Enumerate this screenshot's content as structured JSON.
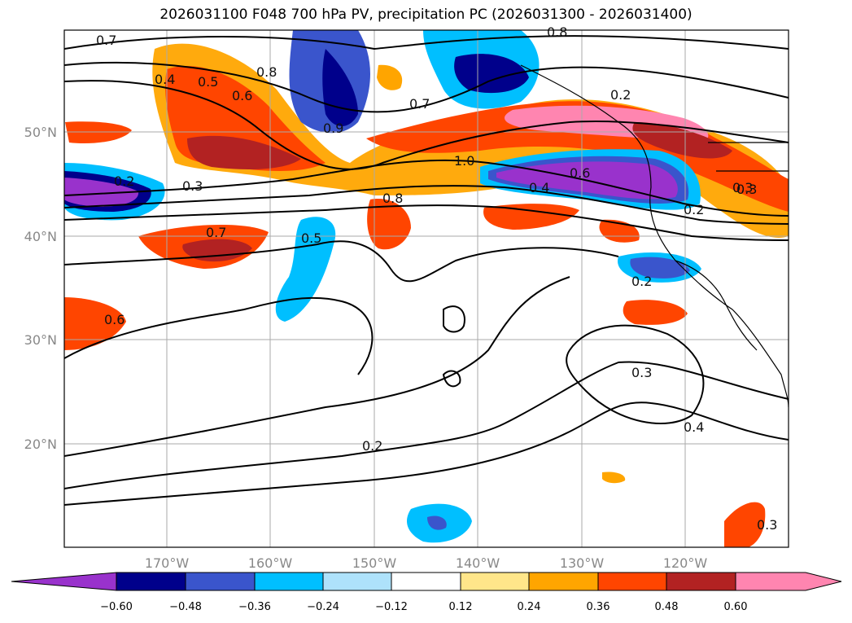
{
  "title": "2026031100 F048 700 hPa PV, precipitation PC (2026031300 - 2026031400)",
  "map": {
    "lon_range": [
      -180,
      -110
    ],
    "lat_range": [
      10,
      60
    ],
    "lat_ticks": [
      {
        "value": 50,
        "label": "50°N"
      },
      {
        "value": 40,
        "label": "40°N"
      },
      {
        "value": 30,
        "label": "30°N"
      },
      {
        "value": 20,
        "label": "20°N"
      }
    ],
    "lon_ticks": [
      {
        "value": -170,
        "label": "170°W"
      },
      {
        "value": -160,
        "label": "160°W"
      },
      {
        "value": -150,
        "label": "150°W"
      },
      {
        "value": -140,
        "label": "140°W"
      },
      {
        "value": -130,
        "label": "130°W"
      },
      {
        "value": -120,
        "label": "120°W"
      }
    ],
    "gridlines": true,
    "contour_labels": [
      "0.7",
      "0.4",
      "0.5",
      "0.6",
      "0.8",
      "0.2",
      "0.3",
      "0.9",
      "1.0",
      "0.6",
      "0.4",
      "0.8",
      "0.2",
      "0.7",
      "0.5",
      "0.6",
      "0.3",
      "0.2",
      "0.3",
      "0.4",
      "0.2",
      "0.7",
      "0.8",
      "0.3",
      "0.2",
      "0.3"
    ]
  },
  "colorbar": {
    "ticks": [
      "−0.60",
      "−0.48",
      "−0.36",
      "−0.24",
      "−0.12",
      "0.12",
      "0.24",
      "0.36",
      "0.48",
      "0.60"
    ],
    "colors": {
      "under": "#9932cc",
      "c1": "#00008b",
      "c2": "#3a55cc",
      "c3": "#00bfff",
      "c4": "#aee2fb",
      "c5": "#ffffff",
      "c6": "#ffe68a",
      "c7": "#ffa500",
      "c8": "#ff4500",
      "c9": "#b22222",
      "over": "#ff85b0"
    }
  }
}
